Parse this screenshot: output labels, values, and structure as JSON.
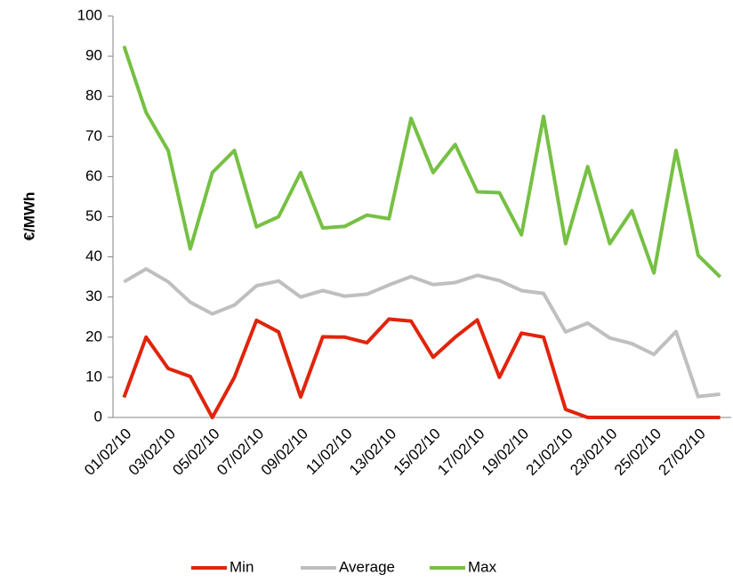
{
  "chart_data": {
    "type": "line",
    "y_label": "€/MWh",
    "categories": [
      "01/02/10",
      null,
      "03/02/10",
      null,
      "05/02/10",
      null,
      "07/02/10",
      null,
      "09/02/10",
      null,
      "11/02/10",
      null,
      "13/02/10",
      null,
      "15/02/10",
      null,
      "17/02/10",
      null,
      "19/02/10",
      null,
      "21/02/10",
      null,
      "23/02/10",
      null,
      "25/02/10",
      null,
      "27/02/10",
      null
    ],
    "series": [
      {
        "name": "Min",
        "color": "#e0240b",
        "values": [
          5,
          20,
          12.2,
          10.2,
          0,
          10,
          24.2,
          21.3,
          5.1,
          20.1,
          20,
          18.6,
          24.5,
          24,
          15,
          20,
          24.3,
          10,
          21,
          20,
          2,
          0,
          0,
          0,
          0,
          0,
          0,
          0
        ]
      },
      {
        "name": "Average",
        "color": "#bfbfbf",
        "values": [
          33.8,
          37,
          33.8,
          28.7,
          25.8,
          28,
          32.8,
          34,
          30,
          31.6,
          30.2,
          30.7,
          33,
          35.1,
          33.1,
          33.6,
          35.4,
          34.1,
          31.6,
          30.9,
          21.3,
          23.5,
          19.8,
          18.4,
          15.7,
          21.4,
          5.2,
          5.8
        ]
      },
      {
        "name": "Max",
        "color": "#76c043",
        "values": [
          92.5,
          76,
          66.5,
          42,
          61,
          66.5,
          47.5,
          50,
          61,
          47.2,
          47.6,
          50.4,
          49.5,
          74.5,
          61,
          68,
          56.2,
          56,
          45.5,
          75,
          43.3,
          62.5,
          43.3,
          51.5,
          36,
          66.5,
          40.4,
          35
        ]
      }
    ],
    "ylim": [
      0,
      100
    ],
    "yticks": [
      0,
      10,
      20,
      30,
      40,
      50,
      60,
      70,
      80,
      90,
      100
    ],
    "grid": false,
    "legend": "bottom"
  }
}
